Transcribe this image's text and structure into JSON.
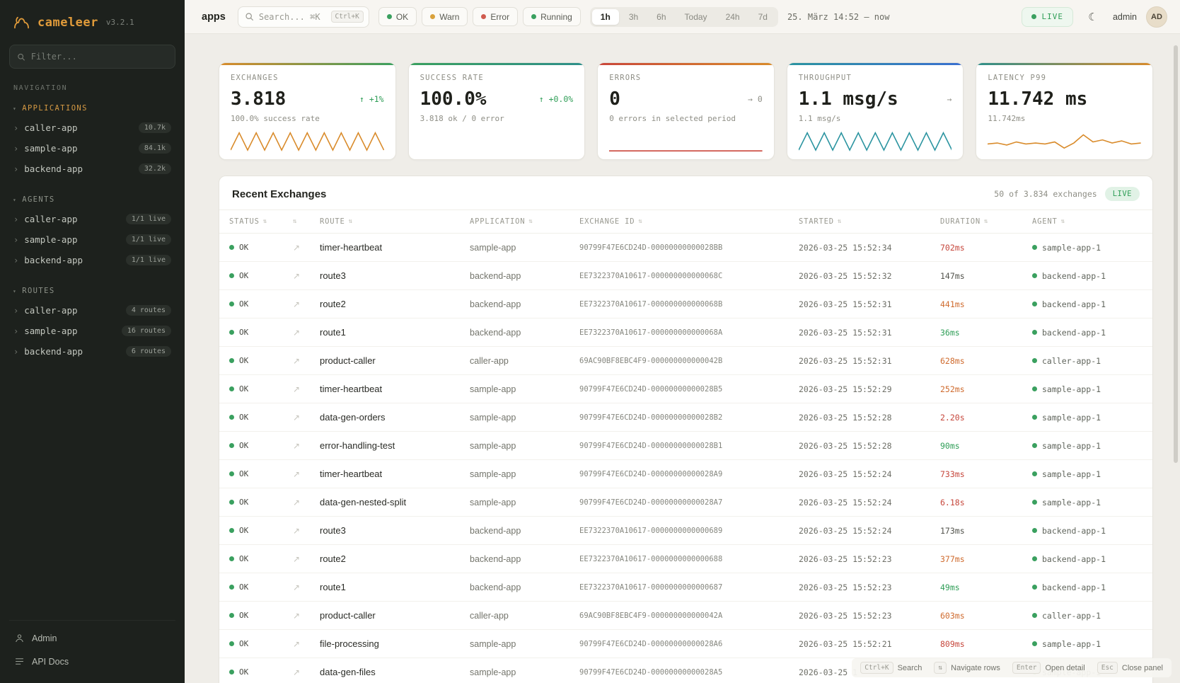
{
  "app": {
    "name": "cameleer",
    "version": "v3.2.1"
  },
  "sidebar": {
    "filter_placeholder": "Filter...",
    "nav_label": "NAVIGATION",
    "sections": [
      {
        "label": "APPLICATIONS",
        "accent": true,
        "items": [
          {
            "label": "caller-app",
            "badge": "10.7k"
          },
          {
            "label": "sample-app",
            "badge": "84.1k"
          },
          {
            "label": "backend-app",
            "badge": "32.2k"
          }
        ]
      },
      {
        "label": "AGENTS",
        "accent": false,
        "items": [
          {
            "label": "caller-app",
            "badge": "1/1 live"
          },
          {
            "label": "sample-app",
            "badge": "1/1 live"
          },
          {
            "label": "backend-app",
            "badge": "1/1 live"
          }
        ]
      },
      {
        "label": "ROUTES",
        "accent": false,
        "items": [
          {
            "label": "caller-app",
            "badge": "4 routes"
          },
          {
            "label": "sample-app",
            "badge": "16 routes"
          },
          {
            "label": "backend-app",
            "badge": "6 routes"
          }
        ]
      }
    ],
    "footer": [
      {
        "label": "Admin"
      },
      {
        "label": "API Docs"
      }
    ]
  },
  "topbar": {
    "breadcrumb": "apps",
    "search_placeholder": "Search... ⌘K",
    "search_kbd": "Ctrl+K",
    "status_chips": [
      {
        "label": "OK",
        "color": "#3aa05f"
      },
      {
        "label": "Warn",
        "color": "#d9a13b"
      },
      {
        "label": "Error",
        "color": "#d05b4e"
      },
      {
        "label": "Running",
        "color": "#3aa05f"
      }
    ],
    "time_ranges": [
      "1h",
      "3h",
      "6h",
      "Today",
      "24h",
      "7d"
    ],
    "active_range": "1h",
    "range_text": "25. März 14:52  —  now",
    "live_label": "LIVE",
    "theme_icon": "☾",
    "user": "admin",
    "avatar": "AD"
  },
  "cards": [
    {
      "label": "EXCHANGES",
      "value": "3.818",
      "trend": "↑ +1%",
      "trend_color": "green",
      "subtitle": "100.0% success rate",
      "spark_color": "#d98b2b",
      "gradient": [
        "#d98b2b",
        "#3aa05f"
      ],
      "spark_points": [
        0.1,
        0.95,
        0.1,
        0.95,
        0.1,
        0.95,
        0.1,
        0.95,
        0.1,
        0.95,
        0.1,
        0.95,
        0.1,
        0.95,
        0.1,
        0.95,
        0.1,
        0.95,
        0.1
      ]
    },
    {
      "label": "SUCCESS RATE",
      "value": "100.0%",
      "trend": "↑ +0.0%",
      "trend_color": "green",
      "subtitle": "3.818 ok / 0 error",
      "spark_color": "",
      "gradient": [
        "#3aa05f",
        "#2e8f8a"
      ],
      "spark_points": []
    },
    {
      "label": "ERRORS",
      "value": "0",
      "trend": "→ 0",
      "trend_color": "gray",
      "subtitle": "0 errors in selected period",
      "spark_color": "#c9463a",
      "gradient": [
        "#c9463a",
        "#d98b2b"
      ],
      "spark_points": [
        0.06,
        0.06
      ]
    },
    {
      "label": "THROUGHPUT",
      "value": "1.1 msg/s",
      "trend": "→",
      "trend_color": "gray",
      "subtitle": "1.1 msg/s",
      "spark_color": "#2b94a0",
      "gradient": [
        "#2b94a0",
        "#3a6fd0"
      ],
      "spark_points": [
        0.1,
        0.95,
        0.1,
        0.95,
        0.1,
        0.95,
        0.1,
        0.95,
        0.1,
        0.95,
        0.1,
        0.95,
        0.1,
        0.95,
        0.1,
        0.95,
        0.1,
        0.95,
        0.1
      ]
    },
    {
      "label": "LATENCY P99",
      "value": "11.742 ms",
      "trend": "",
      "trend_color": "gray",
      "subtitle": "11.742ms",
      "spark_color": "#d98b2b",
      "gradient": [
        "#2e8f8a",
        "#d98b2b"
      ],
      "spark_points": [
        0.4,
        0.45,
        0.35,
        0.5,
        0.4,
        0.45,
        0.4,
        0.5,
        0.2,
        0.45,
        0.85,
        0.5,
        0.6,
        0.45,
        0.55,
        0.4,
        0.45
      ]
    }
  ],
  "table": {
    "title": "Recent Exchanges",
    "summary": "50 of 3.834 exchanges",
    "live_label": "LIVE",
    "columns": [
      "STATUS",
      "",
      "ROUTE",
      "APPLICATION",
      "EXCHANGE ID",
      "STARTED",
      "DURATION",
      "AGENT"
    ],
    "rows": [
      {
        "status": "OK",
        "route": "timer-heartbeat",
        "app": "sample-app",
        "exchange_id": "90799F47E6CD24D-00000000000028BB",
        "started": "2026-03-25 15:52:34",
        "duration": "702ms",
        "duration_color": "red",
        "agent": "sample-app-1"
      },
      {
        "status": "OK",
        "route": "route3",
        "app": "backend-app",
        "exchange_id": "EE7322370A10617-000000000000068C",
        "started": "2026-03-25 15:52:32",
        "duration": "147ms",
        "duration_color": "default",
        "agent": "backend-app-1"
      },
      {
        "status": "OK",
        "route": "route2",
        "app": "backend-app",
        "exchange_id": "EE7322370A10617-000000000000068B",
        "started": "2026-03-25 15:52:31",
        "duration": "441ms",
        "duration_color": "orange",
        "agent": "backend-app-1"
      },
      {
        "status": "OK",
        "route": "route1",
        "app": "backend-app",
        "exchange_id": "EE7322370A10617-000000000000068A",
        "started": "2026-03-25 15:52:31",
        "duration": "36ms",
        "duration_color": "green",
        "agent": "backend-app-1"
      },
      {
        "status": "OK",
        "route": "product-caller",
        "app": "caller-app",
        "exchange_id": "69AC90BF8EBC4F9-000000000000042B",
        "started": "2026-03-25 15:52:31",
        "duration": "628ms",
        "duration_color": "orange",
        "agent": "caller-app-1"
      },
      {
        "status": "OK",
        "route": "timer-heartbeat",
        "app": "sample-app",
        "exchange_id": "90799F47E6CD24D-00000000000028B5",
        "started": "2026-03-25 15:52:29",
        "duration": "252ms",
        "duration_color": "orange",
        "agent": "sample-app-1"
      },
      {
        "status": "OK",
        "route": "data-gen-orders",
        "app": "sample-app",
        "exchange_id": "90799F47E6CD24D-00000000000028B2",
        "started": "2026-03-25 15:52:28",
        "duration": "2.20s",
        "duration_color": "red",
        "agent": "sample-app-1"
      },
      {
        "status": "OK",
        "route": "error-handling-test",
        "app": "sample-app",
        "exchange_id": "90799F47E6CD24D-00000000000028B1",
        "started": "2026-03-25 15:52:28",
        "duration": "90ms",
        "duration_color": "green",
        "agent": "sample-app-1"
      },
      {
        "status": "OK",
        "route": "timer-heartbeat",
        "app": "sample-app",
        "exchange_id": "90799F47E6CD24D-00000000000028A9",
        "started": "2026-03-25 15:52:24",
        "duration": "733ms",
        "duration_color": "red",
        "agent": "sample-app-1"
      },
      {
        "status": "OK",
        "route": "data-gen-nested-split",
        "app": "sample-app",
        "exchange_id": "90799F47E6CD24D-00000000000028A7",
        "started": "2026-03-25 15:52:24",
        "duration": "6.18s",
        "duration_color": "red",
        "agent": "sample-app-1"
      },
      {
        "status": "OK",
        "route": "route3",
        "app": "backend-app",
        "exchange_id": "EE7322370A10617-0000000000000689",
        "started": "2026-03-25 15:52:24",
        "duration": "173ms",
        "duration_color": "default",
        "agent": "backend-app-1"
      },
      {
        "status": "OK",
        "route": "route2",
        "app": "backend-app",
        "exchange_id": "EE7322370A10617-0000000000000688",
        "started": "2026-03-25 15:52:23",
        "duration": "377ms",
        "duration_color": "orange",
        "agent": "backend-app-1"
      },
      {
        "status": "OK",
        "route": "route1",
        "app": "backend-app",
        "exchange_id": "EE7322370A10617-0000000000000687",
        "started": "2026-03-25 15:52:23",
        "duration": "49ms",
        "duration_color": "green",
        "agent": "backend-app-1"
      },
      {
        "status": "OK",
        "route": "product-caller",
        "app": "caller-app",
        "exchange_id": "69AC90BF8EBC4F9-000000000000042A",
        "started": "2026-03-25 15:52:23",
        "duration": "603ms",
        "duration_color": "orange",
        "agent": "caller-app-1"
      },
      {
        "status": "OK",
        "route": "file-processing",
        "app": "sample-app",
        "exchange_id": "90799F47E6CD24D-00000000000028A6",
        "started": "2026-03-25 15:52:21",
        "duration": "809ms",
        "duration_color": "red",
        "agent": "sample-app-1"
      },
      {
        "status": "OK",
        "route": "data-gen-files",
        "app": "sample-app",
        "exchange_id": "90799F47E6CD24D-00000000000028A5",
        "started": "2026-03-25 1",
        "duration": "",
        "duration_color": "default",
        "agent": "sample-app-1"
      }
    ],
    "status_dot_color": "#3aa05f",
    "agent_dot_color": "#3aa05f"
  },
  "hints": [
    {
      "kbd": "Ctrl+K",
      "label": "Search"
    },
    {
      "kbd": "⇅",
      "label": "Navigate rows"
    },
    {
      "kbd": "Enter",
      "label": "Open detail"
    },
    {
      "kbd": "Esc",
      "label": "Close panel"
    }
  ]
}
